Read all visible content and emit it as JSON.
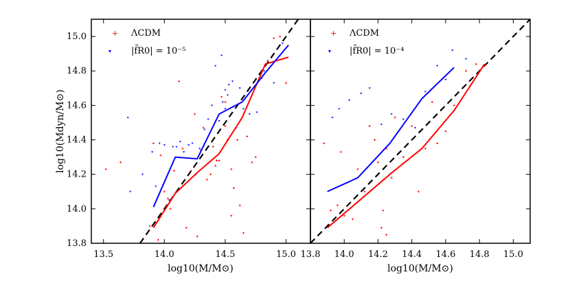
{
  "chart_data": [
    {
      "type": "scatter",
      "panel": "left",
      "xlabel": "log10(M/M⊙)",
      "ylabel": "log10(Mdyn/M⊙)",
      "xlim": [
        13.4,
        15.2
      ],
      "ylim": [
        13.8,
        15.1
      ],
      "xticks": [
        13.5,
        14.0,
        14.5,
        15.0
      ],
      "xtick_labels": [
        "13.5",
        "14.0",
        "14.5",
        "15.0"
      ],
      "yticks": [
        13.8,
        14.0,
        14.2,
        14.4,
        14.6,
        14.8,
        15.0
      ],
      "ytick_labels": [
        "13.8",
        "14.0",
        "14.2",
        "14.4",
        "14.6",
        "14.8",
        "15.0"
      ],
      "legend": [
        {
          "label": "ΛCDM",
          "color": "#ff0000",
          "marker": "plus"
        },
        {
          "label": "|f̄R0| = 10⁻⁵",
          "color": "#0000ff",
          "marker": "triangle"
        }
      ],
      "reference_line": {
        "style": "dashed",
        "color": "#000000",
        "x": [
          13.8,
          15.1
        ],
        "y": [
          13.8,
          15.1
        ]
      },
      "series": [
        {
          "name": "ΛCDM",
          "color": "#ff0000",
          "line": {
            "x": [
              13.91,
              14.09,
              14.27,
              14.45,
              14.64,
              14.83,
              15.02
            ],
            "y": [
              13.89,
              14.09,
              14.21,
              14.32,
              14.53,
              14.84,
              14.88
            ]
          },
          "points": {
            "x": [
              13.52,
              13.64,
              13.88,
              13.91,
              13.95,
              13.97,
              14.0,
              14.03,
              14.05,
              14.08,
              14.12,
              14.15,
              14.18,
              14.22,
              14.25,
              14.27,
              14.3,
              14.32,
              14.35,
              14.38,
              14.4,
              14.42,
              14.45,
              14.47,
              14.5,
              14.52,
              14.55,
              14.57,
              14.6,
              14.62,
              14.65,
              14.68,
              14.72,
              14.75,
              14.8,
              14.85,
              14.9,
              14.95,
              15.0,
              14.55,
              14.5,
              14.43
            ],
            "y": [
              14.23,
              14.27,
              13.9,
              14.38,
              13.82,
              14.31,
              14.1,
              14.06,
              14.0,
              14.22,
              14.74,
              14.35,
              13.89,
              14.22,
              14.55,
              13.84,
              14.34,
              14.47,
              14.17,
              14.2,
              14.36,
              14.25,
              14.28,
              14.65,
              14.48,
              14.4,
              14.23,
              14.12,
              14.4,
              14.02,
              13.86,
              14.42,
              14.27,
              14.3,
              14.76,
              14.86,
              14.99,
              15.0,
              14.73,
              13.96,
              14.62,
              14.28
            ]
          }
        },
        {
          "name": "|f̄R0| = 10⁻⁵",
          "color": "#0000ff",
          "line": {
            "x": [
              13.91,
              14.09,
              14.27,
              14.45,
              14.64,
              14.83,
              15.02
            ],
            "y": [
              14.01,
              14.3,
              14.29,
              14.55,
              14.62,
              14.79,
              14.95
            ]
          },
          "points": {
            "x": [
              13.7,
              13.72,
              13.82,
              13.9,
              13.93,
              13.96,
              14.0,
              14.04,
              14.07,
              14.1,
              14.13,
              14.16,
              14.2,
              14.23,
              14.26,
              14.29,
              14.33,
              14.36,
              14.39,
              14.42,
              14.45,
              14.48,
              14.5,
              14.53,
              14.56,
              14.59,
              14.62,
              14.65,
              14.7,
              14.76,
              14.82,
              14.9,
              14.97,
              14.47,
              14.52,
              14.5
            ],
            "y": [
              14.53,
              14.1,
              14.2,
              14.33,
              14.13,
              14.38,
              14.37,
              14.05,
              14.36,
              14.36,
              14.39,
              14.33,
              14.37,
              14.38,
              14.2,
              14.35,
              14.46,
              14.52,
              14.6,
              14.83,
              14.51,
              14.62,
              14.69,
              14.72,
              14.74,
              14.47,
              14.7,
              14.58,
              14.55,
              14.56,
              14.8,
              14.73,
              14.96,
              14.89,
              14.66,
              14.58
            ]
          }
        }
      ]
    },
    {
      "type": "scatter",
      "panel": "right",
      "xlabel": "log10(M/M⊙)",
      "ylabel": "",
      "xlim": [
        13.8,
        15.1
      ],
      "ylim": [
        13.8,
        15.1
      ],
      "xticks": [
        13.8,
        14.0,
        14.2,
        14.4,
        14.6,
        14.8,
        15.0
      ],
      "xtick_labels": [
        "13.8",
        "14.0",
        "14.2",
        "14.4",
        "14.6",
        "14.8",
        "15.0"
      ],
      "legend": [
        {
          "label": "ΛCDM",
          "color": "#ff0000",
          "marker": "plus"
        },
        {
          "label": "|f̄R0| = 10⁻⁴",
          "color": "#0000ff",
          "marker": "triangle"
        }
      ],
      "reference_line": {
        "style": "dashed",
        "color": "#000000",
        "x": [
          13.8,
          15.1
        ],
        "y": [
          13.8,
          15.1
        ]
      },
      "series": [
        {
          "name": "ΛCDM",
          "color": "#ff0000",
          "line": {
            "x": [
              13.9,
              14.08,
              14.27,
              14.46,
              14.65,
              14.83
            ],
            "y": [
              13.89,
              14.04,
              14.2,
              14.35,
              14.57,
              14.84
            ]
          },
          "points": {
            "x": [
              13.88,
              13.92,
              13.96,
              13.98,
              14.0,
              14.05,
              14.08,
              14.12,
              14.15,
              14.18,
              14.2,
              14.23,
              14.25,
              14.28,
              14.3,
              14.35,
              14.4,
              14.44,
              14.48,
              14.52,
              14.55,
              14.6,
              14.65,
              14.72,
              14.78,
              14.83,
              14.22,
              14.25
            ],
            "y": [
              14.38,
              13.99,
              14.02,
              14.33,
              13.96,
              13.94,
              14.23,
              14.1,
              14.48,
              14.4,
              14.27,
              13.99,
              14.35,
              14.18,
              14.53,
              14.3,
              14.48,
              14.1,
              14.35,
              14.62,
              14.38,
              14.45,
              14.6,
              14.8,
              14.84,
              14.83,
              13.89,
              13.85
            ]
          }
        },
        {
          "name": "|f̄R0| = 10⁻⁴",
          "color": "#0000ff",
          "line": {
            "x": [
              13.9,
              14.08,
              14.27,
              14.46,
              14.65
            ],
            "y": [
              14.1,
              14.18,
              14.38,
              14.64,
              14.82
            ]
          },
          "points": {
            "x": [
              13.93,
              13.97,
              14.03,
              14.1,
              14.15,
              14.22,
              14.28,
              14.35,
              14.42,
              14.48,
              14.55,
              14.6,
              14.64,
              14.72
            ],
            "y": [
              14.53,
              14.58,
              14.63,
              14.67,
              14.7,
              14.49,
              14.55,
              14.52,
              14.47,
              14.68,
              14.83,
              14.75,
              14.92,
              14.87
            ]
          }
        }
      ]
    }
  ]
}
